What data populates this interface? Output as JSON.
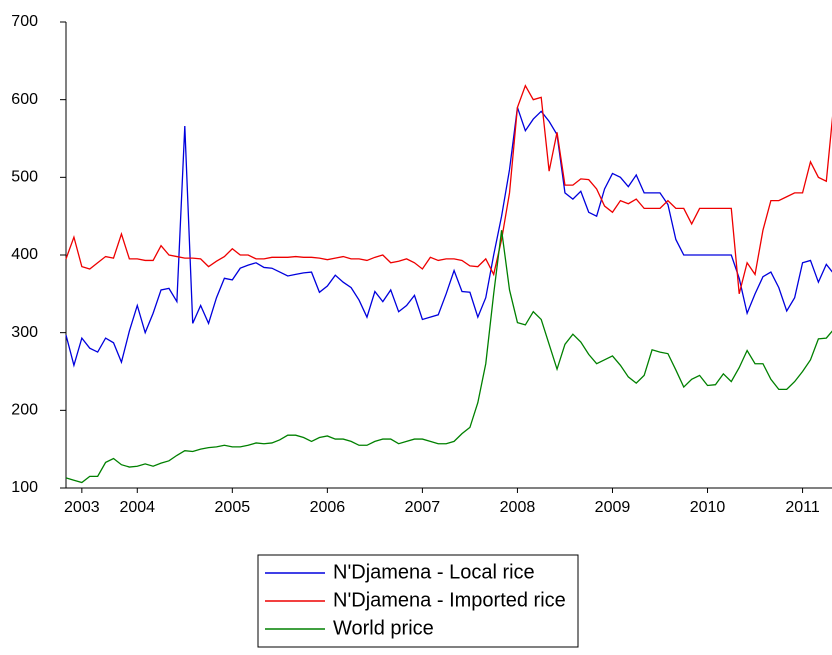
{
  "chart_data": {
    "type": "line",
    "categories": [
      null,
      null,
      "2003",
      null,
      null,
      null,
      null,
      null,
      null,
      "2004",
      null,
      null,
      null,
      null,
      null,
      null,
      null,
      null,
      null,
      null,
      null,
      "2005",
      null,
      null,
      null,
      null,
      null,
      null,
      null,
      null,
      null,
      null,
      null,
      "2006",
      null,
      null,
      null,
      null,
      null,
      null,
      null,
      null,
      null,
      null,
      null,
      "2007",
      null,
      null,
      null,
      null,
      null,
      null,
      null,
      null,
      null,
      null,
      null,
      "2008",
      null,
      null,
      null,
      null,
      null,
      null,
      null,
      null,
      null,
      null,
      null,
      "2009",
      null,
      null,
      null,
      null,
      null,
      null,
      null,
      null,
      null,
      null,
      null,
      "2010",
      null,
      null,
      null,
      null,
      null,
      null,
      null,
      null,
      null,
      null,
      null,
      "2011",
      null,
      null,
      null,
      null
    ],
    "series": [
      {
        "name": "N'Djamena - Local rice",
        "color": "#0000dd",
        "values": [
          297,
          258,
          293,
          280,
          275,
          293,
          287,
          262,
          302,
          335,
          300,
          325,
          355,
          357,
          340,
          566,
          312,
          335,
          312,
          345,
          370,
          368,
          383,
          387,
          390,
          384,
          383,
          378,
          373,
          375,
          377,
          378,
          352,
          360,
          374,
          365,
          358,
          342,
          320,
          353,
          340,
          355,
          327,
          335,
          348,
          317,
          320,
          323,
          350,
          380,
          353,
          352,
          320,
          345,
          400,
          450,
          510,
          590,
          560,
          575,
          585,
          572,
          555,
          480,
          472,
          482,
          455,
          450,
          485,
          505,
          500,
          488,
          503,
          480,
          480,
          480,
          465,
          420,
          400,
          400,
          400,
          400,
          400,
          400,
          400,
          370,
          325,
          350,
          372,
          378,
          358,
          328,
          345,
          390,
          393,
          365,
          388,
          375
        ]
      },
      {
        "name": "N'Djamena - Imported rice",
        "color": "#ee0000",
        "values": [
          395,
          423,
          385,
          382,
          390,
          398,
          396,
          427,
          395,
          395,
          393,
          393,
          412,
          400,
          398,
          396,
          396,
          395,
          385,
          392,
          398,
          408,
          400,
          400,
          395,
          395,
          397,
          397,
          397,
          398,
          397,
          397,
          396,
          394,
          396,
          398,
          395,
          395,
          393,
          397,
          400,
          390,
          392,
          395,
          390,
          382,
          397,
          393,
          395,
          395,
          393,
          386,
          385,
          395,
          375,
          420,
          480,
          590,
          618,
          600,
          603,
          508,
          558,
          490,
          490,
          498,
          497,
          485,
          463,
          455,
          470,
          466,
          472,
          460,
          460,
          460,
          470,
          460,
          460,
          440,
          460,
          460,
          460,
          460,
          460,
          350,
          390,
          375,
          432,
          470,
          470,
          475,
          480,
          480,
          520,
          500,
          495,
          600
        ]
      },
      {
        "name": "World price",
        "color": "#008000",
        "values": [
          113,
          110,
          107,
          115,
          115,
          133,
          138,
          130,
          127,
          128,
          131,
          128,
          132,
          135,
          142,
          148,
          147,
          150,
          152,
          153,
          155,
          153,
          153,
          155,
          158,
          157,
          158,
          162,
          168,
          168,
          165,
          160,
          165,
          167,
          163,
          163,
          160,
          155,
          155,
          160,
          163,
          163,
          157,
          160,
          163,
          163,
          160,
          157,
          157,
          160,
          170,
          178,
          210,
          260,
          350,
          432,
          355,
          313,
          310,
          327,
          317,
          285,
          253,
          285,
          298,
          288,
          272,
          260,
          265,
          270,
          258,
          243,
          235,
          245,
          278,
          275,
          273,
          252,
          230,
          240,
          245,
          232,
          233,
          247,
          237,
          255,
          277,
          260,
          260,
          240,
          227,
          227,
          237,
          250,
          265,
          292,
          293,
          305
        ]
      }
    ],
    "ylim": [
      100,
      700
    ],
    "yticks": [
      100,
      200,
      300,
      400,
      500,
      600,
      700
    ]
  }
}
